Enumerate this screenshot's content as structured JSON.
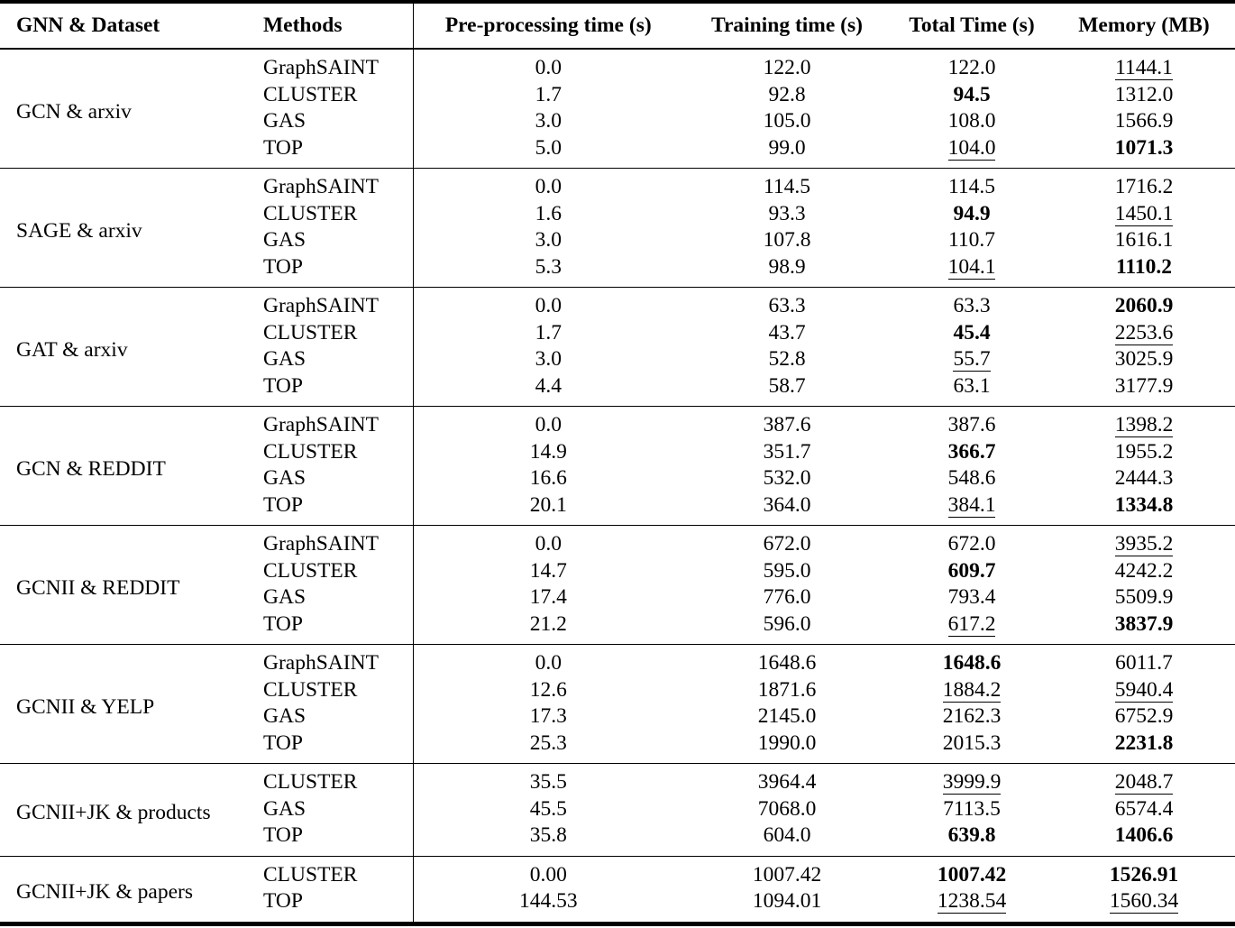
{
  "page": {
    "background": "#ffffff",
    "text_color": "#000000"
  },
  "table": {
    "columns": [
      {
        "label": "GNN & Dataset",
        "align": "left"
      },
      {
        "label": "Methods",
        "align": "left"
      },
      {
        "label": "Pre-processing time (s)",
        "align": "center"
      },
      {
        "label": "Training time (s)",
        "align": "center"
      },
      {
        "label": "Total Time (s)",
        "align": "center"
      },
      {
        "label": "Memory (MB)",
        "align": "center"
      }
    ],
    "style_legend": {
      "bold": "best value",
      "underline": "second-best value"
    },
    "groups": [
      {
        "label": "GCN & arxiv",
        "rows": [
          {
            "method": "GraphSAINT",
            "pre": "0.0",
            "train": "122.0",
            "total": "122.0",
            "total_style": "normal",
            "mem": "1144.1",
            "mem_style": "underline"
          },
          {
            "method": "CLUSTER",
            "pre": "1.7",
            "train": "92.8",
            "total": "94.5",
            "total_style": "bold",
            "mem": "1312.0",
            "mem_style": "normal"
          },
          {
            "method": "GAS",
            "pre": "3.0",
            "train": "105.0",
            "total": "108.0",
            "total_style": "normal",
            "mem": "1566.9",
            "mem_style": "normal"
          },
          {
            "method": "TOP",
            "pre": "5.0",
            "train": "99.0",
            "total": "104.0",
            "total_style": "underline",
            "mem": "1071.3",
            "mem_style": "bold"
          }
        ]
      },
      {
        "label": "SAGE & arxiv",
        "rows": [
          {
            "method": "GraphSAINT",
            "pre": "0.0",
            "train": "114.5",
            "total": "114.5",
            "total_style": "normal",
            "mem": "1716.2",
            "mem_style": "normal"
          },
          {
            "method": "CLUSTER",
            "pre": "1.6",
            "train": "93.3",
            "total": "94.9",
            "total_style": "bold",
            "mem": "1450.1",
            "mem_style": "underline"
          },
          {
            "method": "GAS",
            "pre": "3.0",
            "train": "107.8",
            "total": "110.7",
            "total_style": "normal",
            "mem": "1616.1",
            "mem_style": "normal"
          },
          {
            "method": "TOP",
            "pre": "5.3",
            "train": "98.9",
            "total": "104.1",
            "total_style": "underline",
            "mem": "1110.2",
            "mem_style": "bold"
          }
        ]
      },
      {
        "label": "GAT & arxiv",
        "rows": [
          {
            "method": "GraphSAINT",
            "pre": "0.0",
            "train": "63.3",
            "total": "63.3",
            "total_style": "normal",
            "mem": "2060.9",
            "mem_style": "bold"
          },
          {
            "method": "CLUSTER",
            "pre": "1.7",
            "train": "43.7",
            "total": "45.4",
            "total_style": "bold",
            "mem": "2253.6",
            "mem_style": "underline"
          },
          {
            "method": "GAS",
            "pre": "3.0",
            "train": "52.8",
            "total": "55.7",
            "total_style": "underline",
            "mem": "3025.9",
            "mem_style": "normal"
          },
          {
            "method": "TOP",
            "pre": "4.4",
            "train": "58.7",
            "total": "63.1",
            "total_style": "normal",
            "mem": "3177.9",
            "mem_style": "normal"
          }
        ]
      },
      {
        "label": "GCN & REDDIT",
        "rows": [
          {
            "method": "GraphSAINT",
            "pre": "0.0",
            "train": "387.6",
            "total": "387.6",
            "total_style": "normal",
            "mem": "1398.2",
            "mem_style": "underline"
          },
          {
            "method": "CLUSTER",
            "pre": "14.9",
            "train": "351.7",
            "total": "366.7",
            "total_style": "bold",
            "mem": "1955.2",
            "mem_style": "normal"
          },
          {
            "method": "GAS",
            "pre": "16.6",
            "train": "532.0",
            "total": "548.6",
            "total_style": "normal",
            "mem": "2444.3",
            "mem_style": "normal"
          },
          {
            "method": "TOP",
            "pre": "20.1",
            "train": "364.0",
            "total": "384.1",
            "total_style": "underline",
            "mem": "1334.8",
            "mem_style": "bold"
          }
        ]
      },
      {
        "label": "GCNII & REDDIT",
        "rows": [
          {
            "method": "GraphSAINT",
            "pre": "0.0",
            "train": "672.0",
            "total": "672.0",
            "total_style": "normal",
            "mem": "3935.2",
            "mem_style": "underline"
          },
          {
            "method": "CLUSTER",
            "pre": "14.7",
            "train": "595.0",
            "total": "609.7",
            "total_style": "bold",
            "mem": "4242.2",
            "mem_style": "normal"
          },
          {
            "method": "GAS",
            "pre": "17.4",
            "train": "776.0",
            "total": "793.4",
            "total_style": "normal",
            "mem": "5509.9",
            "mem_style": "normal"
          },
          {
            "method": "TOP",
            "pre": "21.2",
            "train": "596.0",
            "total": "617.2",
            "total_style": "underline",
            "mem": "3837.9",
            "mem_style": "bold"
          }
        ]
      },
      {
        "label": "GCNII & YELP",
        "rows": [
          {
            "method": "GraphSAINT",
            "pre": "0.0",
            "train": "1648.6",
            "total": "1648.6",
            "total_style": "bold",
            "mem": "6011.7",
            "mem_style": "normal"
          },
          {
            "method": "CLUSTER",
            "pre": "12.6",
            "train": "1871.6",
            "total": "1884.2",
            "total_style": "underline",
            "mem": "5940.4",
            "mem_style": "underline"
          },
          {
            "method": "GAS",
            "pre": "17.3",
            "train": "2145.0",
            "total": "2162.3",
            "total_style": "normal",
            "mem": "6752.9",
            "mem_style": "normal"
          },
          {
            "method": "TOP",
            "pre": "25.3",
            "train": "1990.0",
            "total": "2015.3",
            "total_style": "normal",
            "mem": "2231.8",
            "mem_style": "bold"
          }
        ]
      },
      {
        "label": "GCNII+JK & products",
        "rows": [
          {
            "method": "CLUSTER",
            "pre": "35.5",
            "train": "3964.4",
            "total": "3999.9",
            "total_style": "underline",
            "mem": "2048.7",
            "mem_style": "underline"
          },
          {
            "method": "GAS",
            "pre": "45.5",
            "train": "7068.0",
            "total": "7113.5",
            "total_style": "normal",
            "mem": "6574.4",
            "mem_style": "normal"
          },
          {
            "method": "TOP",
            "pre": "35.8",
            "train": "604.0",
            "total": "639.8",
            "total_style": "bold",
            "mem": "1406.6",
            "mem_style": "bold"
          }
        ]
      },
      {
        "label": "GCNII+JK & papers",
        "rows": [
          {
            "method": "CLUSTER",
            "pre": "0.00",
            "train": "1007.42",
            "total": "1007.42",
            "total_style": "bold",
            "mem": "1526.91",
            "mem_style": "bold"
          },
          {
            "method": "TOP",
            "pre": "144.53",
            "train": "1094.01",
            "total": "1238.54",
            "total_style": "underline",
            "mem": "1560.34",
            "mem_style": "underline"
          }
        ]
      }
    ]
  }
}
